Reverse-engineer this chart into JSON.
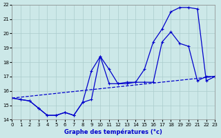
{
  "title": "Graphe des températures (°c)",
  "bg_color": "#cce8e8",
  "grid_color": "#aacccc",
  "line_color": "#0000cc",
  "xmin": 0,
  "xmax": 23,
  "ymin": 14,
  "ymax": 22,
  "line1_x": [
    0,
    1,
    2,
    3,
    4,
    5,
    6,
    7,
    8,
    9,
    10,
    11,
    12,
    13,
    14,
    15,
    16,
    17,
    18,
    19,
    20,
    21,
    22,
    23
  ],
  "line1_y": [
    15.5,
    15.4,
    15.3,
    14.8,
    14.3,
    14.3,
    14.5,
    14.3,
    15.2,
    15.4,
    18.4,
    17.5,
    16.5,
    16.5,
    16.6,
    16.6,
    16.6,
    19.4,
    20.1,
    19.3,
    19.1,
    16.7,
    17.0,
    17.0
  ],
  "line2_x": [
    0,
    1,
    2,
    3,
    4,
    5,
    6,
    7,
    8,
    9,
    10,
    11,
    12,
    13,
    14,
    15,
    16,
    17,
    18,
    19,
    20,
    21,
    22,
    23
  ],
  "line2_y": [
    15.5,
    15.4,
    15.3,
    14.8,
    14.3,
    14.3,
    14.5,
    14.3,
    15.2,
    17.4,
    18.4,
    16.5,
    16.5,
    16.6,
    16.6,
    17.5,
    19.4,
    20.3,
    21.5,
    21.8,
    21.8,
    21.7,
    16.7,
    17.0
  ],
  "line3_x": [
    0,
    23
  ],
  "line3_y": [
    15.5,
    17.0
  ]
}
